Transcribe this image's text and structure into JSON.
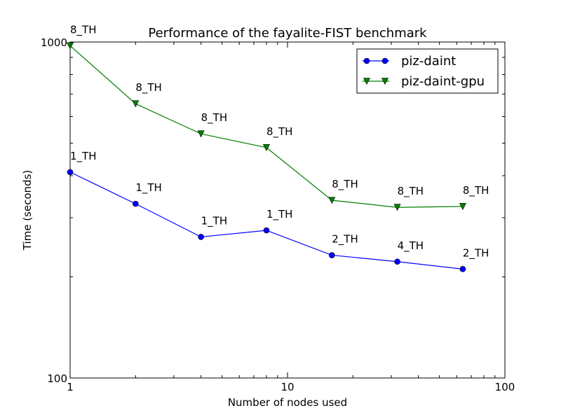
{
  "chart_data": {
    "type": "line",
    "title": "Performance of the fayalite-FIST benchmark",
    "xlabel": "Number of nodes used",
    "ylabel": "Time (seconds)",
    "xscale": "log",
    "yscale": "log",
    "xlim": [
      1,
      100
    ],
    "ylim": [
      100,
      1000
    ],
    "xticks": [
      {
        "value": 1,
        "label": "1"
      },
      {
        "value": 10,
        "label": "10"
      },
      {
        "value": 100,
        "label": "100"
      }
    ],
    "yticks": [
      {
        "value": 100,
        "label": "100"
      },
      {
        "value": 1000,
        "label": "1000"
      }
    ],
    "legend_position": "top-right",
    "series": [
      {
        "name": "piz-daint",
        "color": "#0000ff",
        "marker": "circle",
        "x": [
          1,
          2,
          4,
          8,
          16,
          32,
          64
        ],
        "y": [
          410,
          330,
          263,
          275,
          232,
          222,
          211
        ],
        "labels": [
          "1_TH",
          "1_TH",
          "1_TH",
          "1_TH",
          "2_TH",
          "4_TH",
          "2_TH"
        ]
      },
      {
        "name": "piz-daint-gpu",
        "color": "#007f00",
        "marker": "triangle-down",
        "x": [
          1,
          2,
          4,
          8,
          16,
          32,
          64
        ],
        "y": [
          975,
          655,
          533,
          485,
          338,
          322,
          324
        ],
        "labels": [
          "8_TH",
          "8_TH",
          "8_TH",
          "8_TH",
          "8_TH",
          "8_TH",
          "8_TH"
        ]
      }
    ]
  }
}
